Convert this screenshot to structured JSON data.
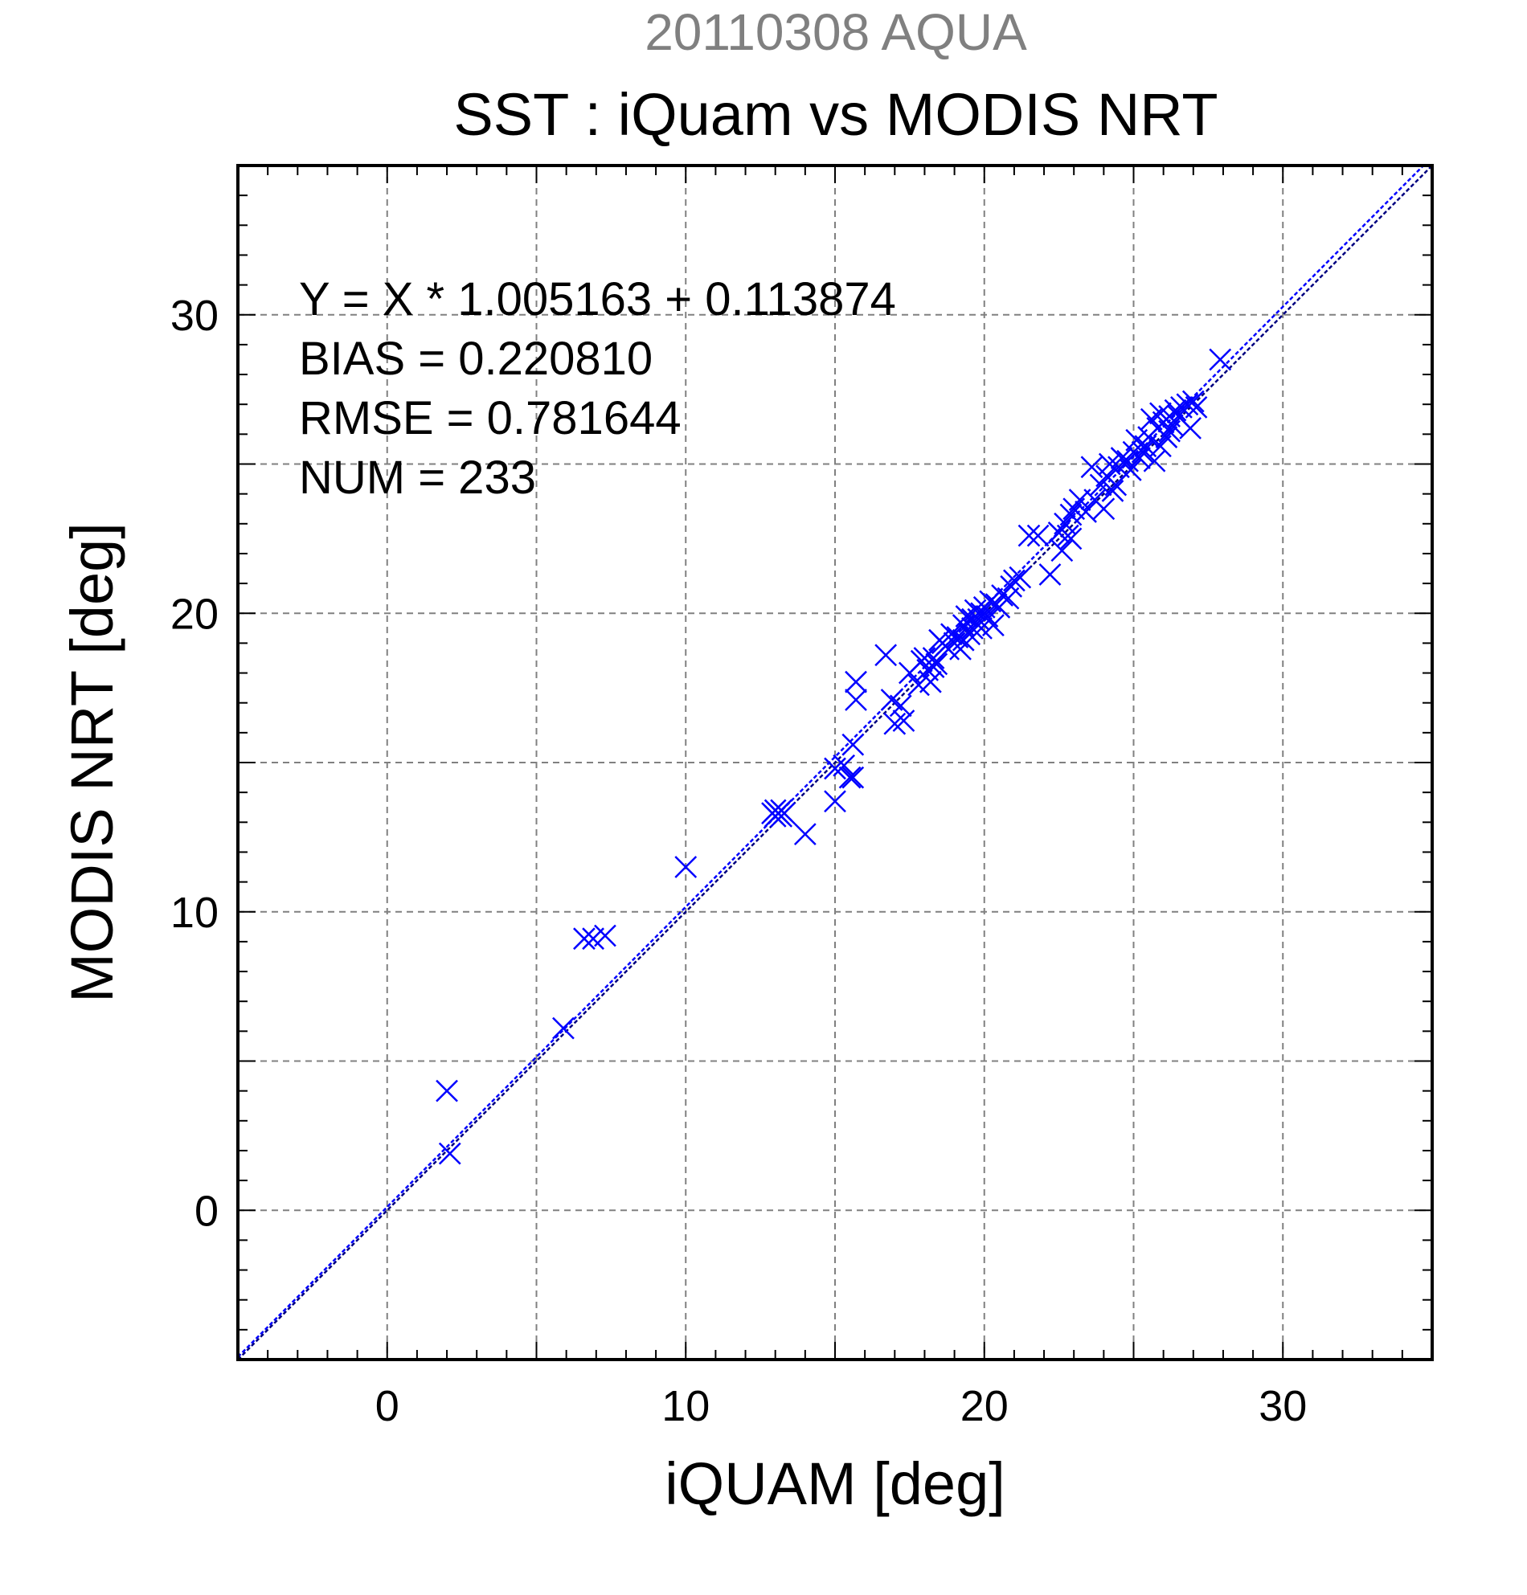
{
  "chart_data": {
    "type": "scatter",
    "date_title": "20110308 AQUA",
    "title": "SST : iQuam vs MODIS NRT",
    "xlabel": "iQUAM [deg]",
    "ylabel": "MODIS NRT [deg]",
    "xlim": [
      -5,
      35
    ],
    "ylim": [
      -5,
      35
    ],
    "major_ticks": [
      0,
      10,
      20,
      30
    ],
    "grid": true,
    "grid_step": 5,
    "stats": {
      "equation": "Y = X * 1.005163 + 0.113874",
      "bias": "BIAS = 0.220810",
      "rmse": "RMSE = 0.781644",
      "num": "NUM = 233"
    },
    "colors": {
      "points": "#0000ff",
      "fit_line": "#0000ff",
      "identity_line": "#000080",
      "date_title": "#808080",
      "grid": "#808080"
    },
    "lines": [
      {
        "role": "fit",
        "slope": 1.005163,
        "intercept": 0.113874
      },
      {
        "role": "identity",
        "slope": 1,
        "intercept": 0
      }
    ],
    "points": [
      [
        2.0,
        4.0
      ],
      [
        2.1,
        1.9
      ],
      [
        5.9,
        6.1
      ],
      [
        6.6,
        9.1
      ],
      [
        6.9,
        9.1
      ],
      [
        7.3,
        9.2
      ],
      [
        10.0,
        11.5
      ],
      [
        12.9,
        13.3
      ],
      [
        13.0,
        13.4
      ],
      [
        13.1,
        13.3
      ],
      [
        13.2,
        13.4
      ],
      [
        13.3,
        13.3
      ],
      [
        13.0,
        13.2
      ],
      [
        13.2,
        13.2
      ],
      [
        14.0,
        12.6
      ],
      [
        15.0,
        13.7
      ],
      [
        15.0,
        14.8
      ],
      [
        15.3,
        14.9
      ],
      [
        15.5,
        14.5
      ],
      [
        15.6,
        14.5
      ],
      [
        15.6,
        15.6
      ],
      [
        15.7,
        17.7
      ],
      [
        15.7,
        17.1
      ],
      [
        16.7,
        18.6
      ],
      [
        16.9,
        17.1
      ],
      [
        17.0,
        16.3
      ],
      [
        17.2,
        16.9
      ],
      [
        17.3,
        16.4
      ],
      [
        17.5,
        18.0
      ],
      [
        17.8,
        17.6
      ],
      [
        17.9,
        18.4
      ],
      [
        18.0,
        18.5
      ],
      [
        18.1,
        18.1
      ],
      [
        18.2,
        17.7
      ],
      [
        18.3,
        18.5
      ],
      [
        18.4,
        18.3
      ],
      [
        18.5,
        19.1
      ],
      [
        18.6,
        19.0
      ],
      [
        18.8,
        18.8
      ],
      [
        18.9,
        19.3
      ],
      [
        19.0,
        19.0
      ],
      [
        19.1,
        19.2
      ],
      [
        19.2,
        18.8
      ],
      [
        19.3,
        19.6
      ],
      [
        19.4,
        19.9
      ],
      [
        19.5,
        19.3
      ],
      [
        19.6,
        19.5
      ],
      [
        19.7,
        20.1
      ],
      [
        19.8,
        19.8
      ],
      [
        19.9,
        19.5
      ],
      [
        20.0,
        20.2
      ],
      [
        20.1,
        19.9
      ],
      [
        20.2,
        20.4
      ],
      [
        20.3,
        19.6
      ],
      [
        20.4,
        20.3
      ],
      [
        20.6,
        20.6
      ],
      [
        20.8,
        20.5
      ],
      [
        20.9,
        20.9
      ],
      [
        21.0,
        21.1
      ],
      [
        21.5,
        22.6
      ],
      [
        21.8,
        22.6
      ],
      [
        22.2,
        21.3
      ],
      [
        22.5,
        22.7
      ],
      [
        22.6,
        22.1
      ],
      [
        22.7,
        23.0
      ],
      [
        22.8,
        22.6
      ],
      [
        22.9,
        23.3
      ],
      [
        23.0,
        23.5
      ],
      [
        23.2,
        23.8
      ],
      [
        23.4,
        23.4
      ],
      [
        23.6,
        24.9
      ],
      [
        23.7,
        23.8
      ],
      [
        23.9,
        24.3
      ],
      [
        24.0,
        23.5
      ],
      [
        24.1,
        24.6
      ],
      [
        24.2,
        25.0
      ],
      [
        24.3,
        24.1
      ],
      [
        24.4,
        24.3
      ],
      [
        24.5,
        24.9
      ],
      [
        24.6,
        25.2
      ],
      [
        24.8,
        25.1
      ],
      [
        25.0,
        25.4
      ],
      [
        25.1,
        25.8
      ],
      [
        25.2,
        25.2
      ],
      [
        25.4,
        25.6
      ],
      [
        25.5,
        25.9
      ],
      [
        25.6,
        26.5
      ],
      [
        25.7,
        25.1
      ],
      [
        25.8,
        26.2
      ],
      [
        25.9,
        26.7
      ],
      [
        26.0,
        26.4
      ],
      [
        26.1,
        25.9
      ],
      [
        26.2,
        26.6
      ],
      [
        26.3,
        26.3
      ],
      [
        26.4,
        26.8
      ],
      [
        26.5,
        26.6
      ],
      [
        26.6,
        26.9
      ],
      [
        26.8,
        27.0
      ],
      [
        27.0,
        27.1
      ],
      [
        27.1,
        26.9
      ],
      [
        27.9,
        28.5
      ],
      [
        26.9,
        26.2
      ],
      [
        25.9,
        25.6
      ],
      [
        26.2,
        26.1
      ],
      [
        25.3,
        25.4
      ],
      [
        24.9,
        24.8
      ],
      [
        20.5,
        20.2
      ],
      [
        19.9,
        20.0
      ],
      [
        19.6,
        19.8
      ],
      [
        19.3,
        19.1
      ],
      [
        18.7,
        18.9
      ],
      [
        18.3,
        18.2
      ],
      [
        21.2,
        21.2
      ],
      [
        22.9,
        22.5
      ]
    ]
  }
}
